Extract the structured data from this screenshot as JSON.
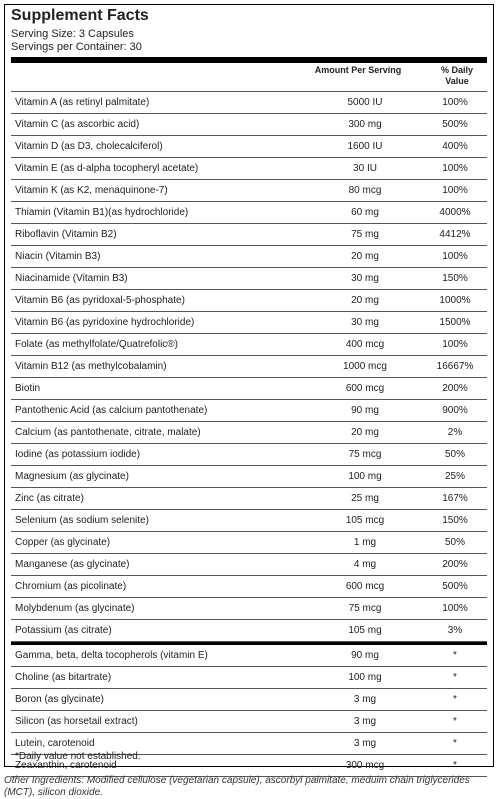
{
  "panel": {
    "title": "Supplement Facts",
    "serving_size": "Serving Size: 3 Capsules",
    "servings_per_container": "Servings per Container: 30",
    "col_amount": "Amount Per Serving",
    "col_dv_line1": "% Daily",
    "col_dv_line2": "Value"
  },
  "rows": [
    {
      "name": "Vitamin A (as retinyl palmitate)",
      "amount": "5000 IU",
      "dv": "100%"
    },
    {
      "name": "Vitamin C (as ascorbic acid)",
      "amount": "300 mg",
      "dv": "500%"
    },
    {
      "name": "Vitamin D (as D3, cholecalciferol)",
      "amount": "1600 IU",
      "dv": "400%"
    },
    {
      "name": "Vitamin E (as d-alpha tocopheryl acetate)",
      "amount": "30 IU",
      "dv": "100%"
    },
    {
      "name": "Vitamin K (as K2, menaquinone-7)",
      "amount": "80 mcg",
      "dv": "100%"
    },
    {
      "name": "Thiamin (Vitamin B1)(as hydrochloride)",
      "amount": "60 mg",
      "dv": "4000%"
    },
    {
      "name": "Riboflavin (Vitamin B2)",
      "amount": "75 mg",
      "dv": "4412%"
    },
    {
      "name": "Niacin (Vitamin B3)",
      "amount": "20 mg",
      "dv": "100%"
    },
    {
      "name": "Niacinamide (Vitamin B3)",
      "amount": "30 mg",
      "dv": "150%"
    },
    {
      "name": "Vitamin B6 (as pyridoxal-5-phosphate)",
      "amount": "20 mg",
      "dv": "1000%"
    },
    {
      "name": "Vitamin B6 (as pyridoxine hydrochloride)",
      "amount": "30 mg",
      "dv": "1500%"
    },
    {
      "name": "Folate (as methylfolate/Quatrefolic®)",
      "amount": "400 mcg",
      "dv": "100%"
    },
    {
      "name": "Vitamin B12 (as methylcobalamin)",
      "amount": "1000 mcg",
      "dv": "16667%"
    },
    {
      "name": "Biotin",
      "amount": "600 mcg",
      "dv": "200%"
    },
    {
      "name": "Pantothenic Acid (as calcium pantothenate)",
      "amount": "90 mg",
      "dv": "900%"
    },
    {
      "name": "Calcium (as pantothenate, citrate, malate)",
      "amount": "20 mg",
      "dv": "2%"
    },
    {
      "name": "Iodine (as potassium iodide)",
      "amount": "75 mcg",
      "dv": "50%"
    },
    {
      "name": "Magnesium (as glycinate)",
      "amount": "100 mg",
      "dv": "25%"
    },
    {
      "name": "Zinc (as citrate)",
      "amount": "25 mg",
      "dv": "167%"
    },
    {
      "name": "Selenium (as sodium selenite)",
      "amount": "105 mcg",
      "dv": "150%"
    },
    {
      "name": "Copper (as glycinate)",
      "amount": "1 mg",
      "dv": "50%"
    },
    {
      "name": "Manganese (as glycinate)",
      "amount": "4 mg",
      "dv": "200%"
    },
    {
      "name": "Chromium (as picolinate)",
      "amount": "600 mcg",
      "dv": "500%"
    },
    {
      "name": "Molybdenum (as glycinate)",
      "amount": "75 mcg",
      "dv": "100%"
    },
    {
      "name": "Potassium (as citrate)",
      "amount": "105 mg",
      "dv": "3%"
    }
  ],
  "other_rows": [
    {
      "name": "Gamma, beta, delta tocopherols (vitamin E)",
      "amount": "90 mg",
      "dv": "*"
    },
    {
      "name": "Choline (as bitartrate)",
      "amount": "100 mg",
      "dv": "*"
    },
    {
      "name": "Boron (as glycinate)",
      "amount": "3 mg",
      "dv": "*"
    },
    {
      "name": "Silicon (as horsetail extract)",
      "amount": "3 mg",
      "dv": "*"
    },
    {
      "name": "Lutein, carotenoid",
      "amount": "3 mg",
      "dv": "*"
    },
    {
      "name": "Zeaxanthin, carotenoid",
      "amount": "300 mcg",
      "dv": "*"
    }
  ],
  "footnote": "*Daily value not established.",
  "other_ingredients": "Other Ingredients: Modified cellulose (vegetarian capsule), ascorbyl palmitate, meduim chain triglycerides (MCT), silicon dioxide."
}
